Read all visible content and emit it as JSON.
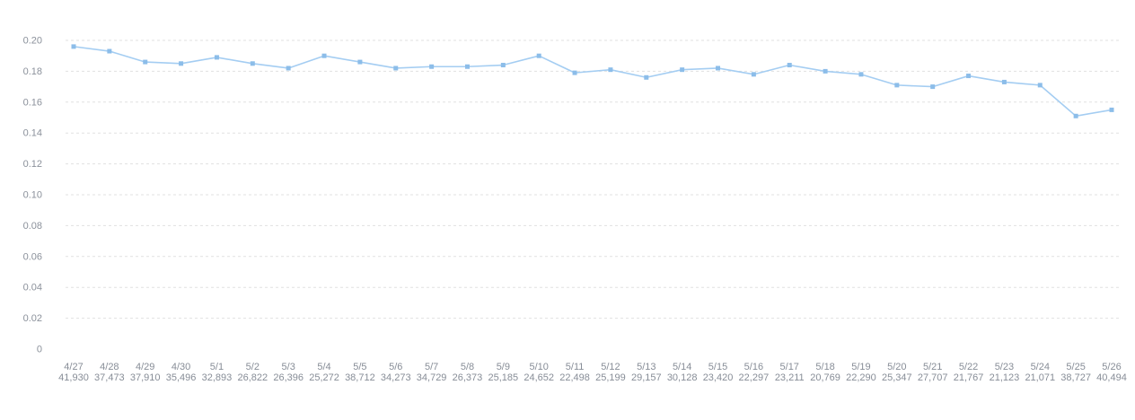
{
  "chart_data": {
    "type": "line",
    "title": "",
    "xlabel": "",
    "ylabel": "",
    "legend": "none",
    "grid": "horizontal-dashed",
    "ylim": [
      0,
      0.2
    ],
    "yticks": [
      0.2,
      0.18,
      0.16,
      0.14,
      0.12,
      0.1,
      0.08,
      0.06,
      0.04,
      0.02,
      0
    ],
    "ytick_labels": [
      "0.20",
      "0.18",
      "0.16",
      "0.14",
      "0.12",
      "0.10",
      "0.08",
      "0.06",
      "0.04",
      "0.02",
      "0"
    ],
    "categories": [
      "4/27",
      "4/28",
      "4/29",
      "4/30",
      "5/1",
      "5/2",
      "5/3",
      "5/4",
      "5/5",
      "5/6",
      "5/7",
      "5/8",
      "5/9",
      "5/10",
      "5/11",
      "5/12",
      "5/13",
      "5/14",
      "5/15",
      "5/16",
      "5/17",
      "5/18",
      "5/19",
      "5/20",
      "5/21",
      "5/22",
      "5/23",
      "5/24",
      "5/25",
      "5/26"
    ],
    "counts": [
      "41,930",
      "37,473",
      "37,910",
      "35,496",
      "32,893",
      "26,822",
      "26,396",
      "25,272",
      "38,712",
      "34,273",
      "34,729",
      "26,373",
      "25,185",
      "24,652",
      "22,498",
      "25,199",
      "29,157",
      "30,128",
      "23,420",
      "22,297",
      "23,211",
      "20,769",
      "22,290",
      "25,347",
      "27,707",
      "21,767",
      "21,123",
      "21,071",
      "38,727",
      "40,494"
    ],
    "values": [
      0.196,
      0.193,
      0.186,
      0.185,
      0.189,
      0.185,
      0.182,
      0.19,
      0.186,
      0.182,
      0.183,
      0.183,
      0.184,
      0.19,
      0.179,
      0.181,
      0.176,
      0.181,
      0.182,
      0.178,
      0.184,
      0.18,
      0.178,
      0.171,
      0.17,
      0.177,
      0.173,
      0.171,
      0.151,
      0.155
    ]
  },
  "colors": {
    "line": "#a4cdf2",
    "marker": "#8cbde9",
    "grid": "#e1e1e1",
    "y_label": "#8b919b",
    "x_label": "#878d97",
    "background": "#ffffff"
  }
}
